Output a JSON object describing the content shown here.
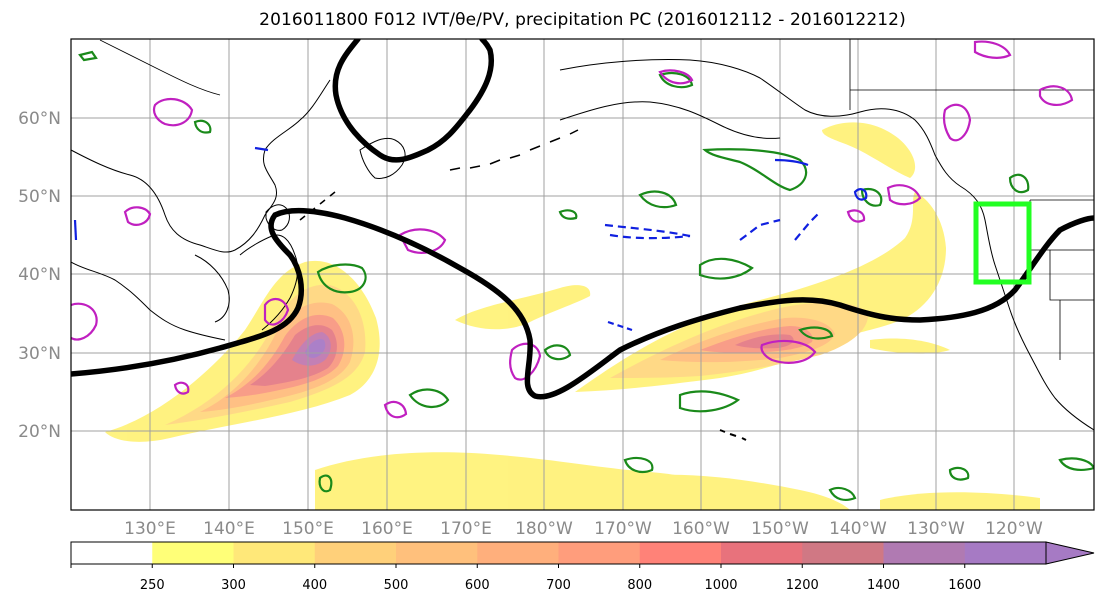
{
  "title": "2016011800 F012 IVT/θe/PV, precipitation PC (2016012112 - 2016012212)",
  "map": {
    "lat_labels": [
      "60°N",
      "50°N",
      "40°N",
      "30°N",
      "20°N"
    ],
    "lon_labels": [
      "130°E",
      "140°E",
      "150°E",
      "160°E",
      "170°E",
      "180°W",
      "170°W",
      "160°W",
      "150°W",
      "140°W",
      "130°W",
      "120°W"
    ],
    "colors": {
      "trough_line": "#000000",
      "positive_contour": "#1a8a1a",
      "pv_contour": "#c020c0",
      "negative_contour": "#1020e0",
      "target_box": "#22ff22"
    }
  },
  "colorbar": {
    "ticks": [
      "250",
      "300",
      "400",
      "500",
      "600",
      "700",
      "800",
      "1000",
      "1200",
      "1400",
      "1600"
    ],
    "colors": [
      "#ffffff",
      "#ffff78",
      "#ffe879",
      "#ffd07a",
      "#ffc07c",
      "#ffaf7c",
      "#ff9d7c",
      "#ff8278",
      "#e8727c",
      "#d07884",
      "#b07ab2",
      "#a67ac4"
    ]
  }
}
